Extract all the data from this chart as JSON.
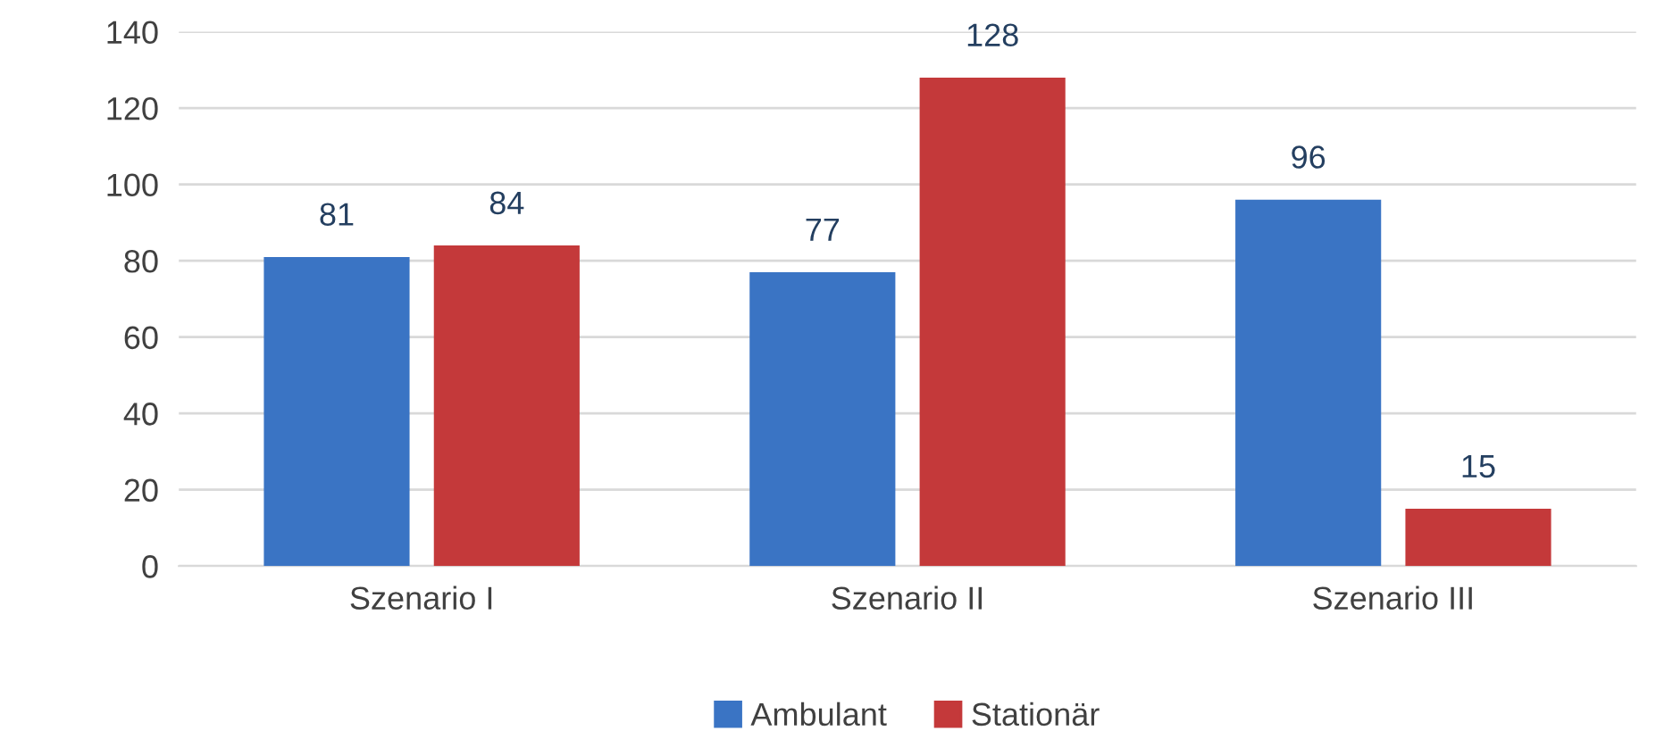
{
  "chart_data": {
    "type": "bar",
    "categories": [
      "Szenario I",
      "Szenario II",
      "Szenario III"
    ],
    "series": [
      {
        "name": "Ambulant",
        "color": "#3a74c4",
        "values": [
          81,
          77,
          96
        ]
      },
      {
        "name": "Stationär",
        "color": "#c4393a",
        "values": [
          84,
          128,
          15
        ]
      }
    ],
    "ylim": [
      0,
      140
    ],
    "yticks": [
      0,
      20,
      40,
      60,
      80,
      100,
      120,
      140
    ],
    "grid": "y",
    "legend": "bottom",
    "data_labels": true
  }
}
